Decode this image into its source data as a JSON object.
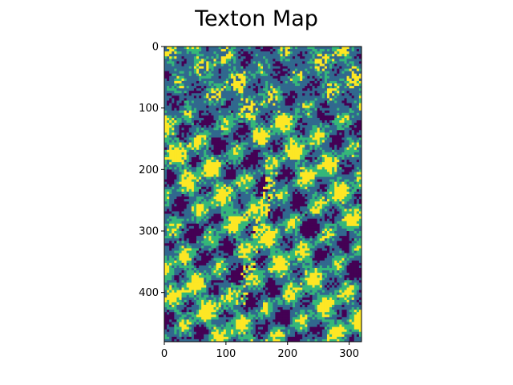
{
  "colors": {
    "background": "#ffffff",
    "text": "#000000",
    "axis": "#000000",
    "colormap": [
      "#440154",
      "#31688e",
      "#35b779",
      "#fde725"
    ]
  },
  "chart_data": {
    "type": "heatmap",
    "title": "Texton Map",
    "xlabel": "",
    "ylabel": "",
    "colormap": "viridis",
    "image_shape": {
      "rows": 480,
      "cols": 320
    },
    "xlim": [
      0,
      320
    ],
    "ylim": [
      480,
      0
    ],
    "y_inverted": true,
    "grid": false,
    "legend": "none",
    "x_ticks": [
      0,
      100,
      200,
      300
    ],
    "y_ticks": [
      0,
      100,
      200,
      300,
      400
    ],
    "x_tick_labels": [
      "0",
      "100",
      "200",
      "300"
    ],
    "y_tick_labels": [
      "0",
      "100",
      "200",
      "300",
      "400"
    ]
  }
}
